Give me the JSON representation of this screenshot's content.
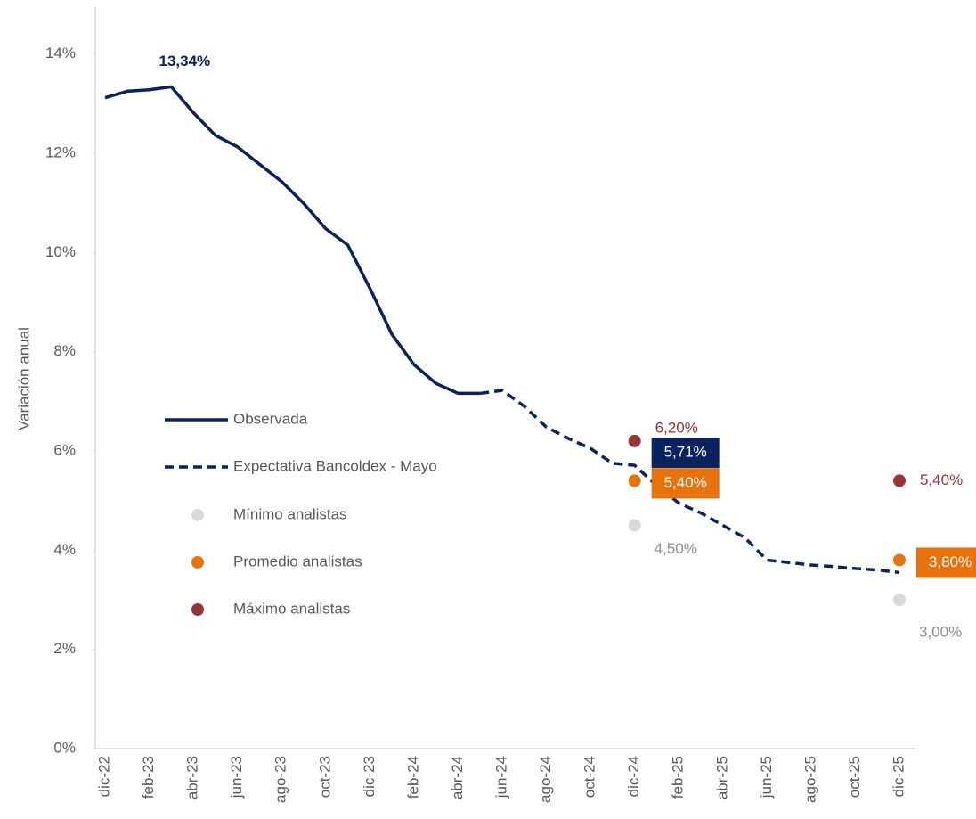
{
  "chart_data": {
    "type": "line",
    "ylabel": "Variación anual",
    "categories": [
      "dic-22",
      null,
      "feb-23",
      null,
      "abr-23",
      null,
      "jun-23",
      null,
      "ago-23",
      null,
      "oct-23",
      null,
      "dic-23",
      null,
      "feb-24",
      null,
      "abr-24",
      null,
      "jun-24",
      null,
      "ago-24",
      null,
      "oct-24",
      null,
      "dic-24",
      null,
      "feb-25",
      null,
      "abr-25",
      null,
      "jun-25",
      null,
      "ago-25",
      null,
      "oct-25",
      null,
      "dic-25"
    ],
    "ylim": [
      0,
      15
    ],
    "yticks": [
      {
        "value": 0,
        "label": "0%"
      },
      {
        "value": 2,
        "label": "2%"
      },
      {
        "value": 4,
        "label": "4%"
      },
      {
        "value": 6,
        "label": "6%"
      },
      {
        "value": 8,
        "label": "8%"
      },
      {
        "value": 10,
        "label": "10%"
      },
      {
        "value": 12,
        "label": "12%"
      },
      {
        "value": 14,
        "label": "14%"
      }
    ],
    "legend": "left",
    "series": [
      {
        "name": "Observada",
        "color": "#0b2260",
        "style": "solid",
        "label_bold": true,
        "values": [
          13.12,
          13.25,
          13.28,
          13.34,
          12.82,
          12.36,
          12.13,
          11.78,
          11.43,
          10.99,
          10.48,
          10.15,
          9.28,
          8.35,
          7.74,
          7.36,
          7.16,
          7.16,
          null,
          null,
          null,
          null,
          null,
          null,
          null,
          null,
          null,
          null,
          null,
          null,
          null,
          null,
          null,
          null,
          null,
          null,
          null
        ],
        "value_labels": [
          null,
          null,
          null,
          "13,34%",
          null,
          null,
          null,
          null,
          null,
          null,
          null,
          null,
          null,
          null,
          null,
          null,
          null,
          null,
          null,
          null,
          null,
          null,
          null,
          null,
          null,
          null,
          null,
          null,
          null,
          null,
          null,
          null,
          null,
          null,
          null,
          null,
          null
        ]
      },
      {
        "name": "Expectativa Bancoldex - Mayo",
        "color": "#0b2260",
        "style": "dashed",
        "label_box": true,
        "values": [
          null,
          null,
          null,
          null,
          null,
          null,
          null,
          null,
          null,
          null,
          null,
          null,
          null,
          null,
          null,
          null,
          null,
          7.16,
          7.22,
          6.9,
          6.48,
          6.25,
          6.05,
          5.75,
          5.71,
          5.3,
          4.95,
          4.75,
          4.5,
          4.25,
          3.8,
          3.75,
          3.7,
          3.67,
          3.63,
          3.6,
          3.55
        ],
        "value_labels": [
          null,
          null,
          null,
          null,
          null,
          null,
          null,
          null,
          null,
          null,
          null,
          null,
          null,
          null,
          null,
          null,
          null,
          null,
          null,
          null,
          null,
          null,
          null,
          null,
          "5,71%",
          null,
          null,
          null,
          null,
          null,
          null,
          null,
          null,
          null,
          null,
          null,
          null
        ]
      },
      {
        "name": "Mínimo analistas",
        "color": "#d9d9d9",
        "style": "point",
        "label_color": "#8c8c8c",
        "values": [
          null,
          null,
          null,
          null,
          null,
          null,
          null,
          null,
          null,
          null,
          null,
          null,
          null,
          null,
          null,
          null,
          null,
          null,
          null,
          null,
          null,
          null,
          null,
          null,
          4.5,
          null,
          null,
          null,
          null,
          null,
          null,
          null,
          null,
          null,
          null,
          null,
          3.0
        ],
        "value_labels": [
          null,
          null,
          null,
          null,
          null,
          null,
          null,
          null,
          null,
          null,
          null,
          null,
          null,
          null,
          null,
          null,
          null,
          null,
          null,
          null,
          null,
          null,
          null,
          null,
          "4,50%",
          null,
          null,
          null,
          null,
          null,
          null,
          null,
          null,
          null,
          null,
          null,
          "3,00%"
        ]
      },
      {
        "name": "Promedio analistas",
        "color": "#e8720c",
        "style": "point",
        "label_box": true,
        "values": [
          null,
          null,
          null,
          null,
          null,
          null,
          null,
          null,
          null,
          null,
          null,
          null,
          null,
          null,
          null,
          null,
          null,
          null,
          null,
          null,
          null,
          null,
          null,
          null,
          5.4,
          null,
          null,
          null,
          null,
          null,
          null,
          null,
          null,
          null,
          null,
          null,
          3.8
        ],
        "value_labels": [
          null,
          null,
          null,
          null,
          null,
          null,
          null,
          null,
          null,
          null,
          null,
          null,
          null,
          null,
          null,
          null,
          null,
          null,
          null,
          null,
          null,
          null,
          null,
          null,
          "5,40%",
          null,
          null,
          null,
          null,
          null,
          null,
          null,
          null,
          null,
          null,
          null,
          "3,80%"
        ]
      },
      {
        "name": "Máximo analistas",
        "color": "#9b3237",
        "style": "point",
        "label_color": "#9b3237",
        "values": [
          null,
          null,
          null,
          null,
          null,
          null,
          null,
          null,
          null,
          null,
          null,
          null,
          null,
          null,
          null,
          null,
          null,
          null,
          null,
          null,
          null,
          null,
          null,
          null,
          6.2,
          null,
          null,
          null,
          null,
          null,
          null,
          null,
          null,
          null,
          null,
          null,
          5.4
        ],
        "value_labels": [
          null,
          null,
          null,
          null,
          null,
          null,
          null,
          null,
          null,
          null,
          null,
          null,
          null,
          null,
          null,
          null,
          null,
          null,
          null,
          null,
          null,
          null,
          null,
          null,
          "6,20%",
          null,
          null,
          null,
          null,
          null,
          null,
          null,
          null,
          null,
          null,
          null,
          "5,40%"
        ]
      }
    ]
  }
}
